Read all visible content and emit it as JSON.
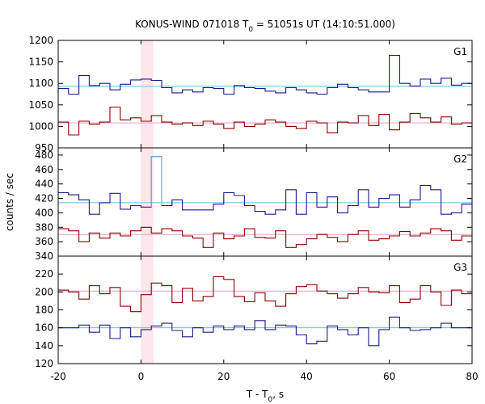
{
  "chart_data": {
    "type": "line",
    "title_prefix": "KONUS-WIND 071018 T",
    "title_sub": "0",
    "title_suffix": " = 51051s UT (14:10:51.000)",
    "xlabel_prefix": "T - T",
    "xlabel_sub": "0",
    "xlabel_suffix": ", s",
    "ylabel": "counts / sec",
    "xlim": [
      -20,
      80
    ],
    "x_ticks": [
      -20,
      0,
      20,
      40,
      60,
      80
    ],
    "highlight_interval": [
      0,
      3
    ],
    "colors": {
      "blue": "#1a1a8c",
      "red": "#8b0000",
      "cyan": "#5bc0eb",
      "pink": "#e79ad0",
      "lightblue": "#7fb4e6",
      "highlight": "#fde7ea"
    },
    "panels": [
      {
        "name": "G1",
        "ylim": [
          950,
          1200
        ],
        "y_ticks": [
          950,
          1000,
          1050,
          1100,
          1150,
          1200
        ],
        "bin_edges": [
          -20,
          -17.5,
          -15,
          -12.5,
          -10,
          -7.5,
          -5,
          -2.5,
          0,
          2.5,
          5,
          7.5,
          10,
          12.5,
          15,
          17.5,
          20,
          22.5,
          25,
          27.5,
          30,
          32.5,
          35,
          37.5,
          40,
          42.5,
          45,
          47.5,
          50,
          52.5,
          55,
          57.5,
          60,
          62.5,
          65,
          67.5,
          70,
          72.5,
          75,
          77.5,
          80
        ],
        "series": [
          {
            "values": [
              1088,
              1075,
              1118,
              1095,
              1100,
              1085,
              1098,
              1108,
              1110,
              1107,
              1090,
              1078,
              1085,
              1080,
              1090,
              1088,
              1075,
              1095,
              1090,
              1088,
              1082,
              1078,
              1090,
              1085,
              1078,
              1075,
              1090,
              1098,
              1090,
              1085,
              1080,
              1080,
              1165,
              1100,
              1094,
              1110,
              1100,
              1112,
              1096,
              1100
            ]
          },
          {
            "values": [
              1010,
              980,
              1012,
              1005,
              1010,
              1045,
              1015,
              1020,
              1012,
              1025,
              1010,
              1005,
              1008,
              1002,
              1012,
              1005,
              995,
              1010,
              1000,
              1005,
              1015,
              1010,
              1000,
              995,
              1012,
              1008,
              985,
              1010,
              1008,
              1025,
              1002,
              1028,
              992,
              1010,
              1030,
              1020,
              1010,
              1022,
              1005,
              1008
            ]
          }
        ],
        "means": [
          {
            "value": 1093
          },
          {
            "value": 1008
          }
        ]
      },
      {
        "name": "G2",
        "ylim": [
          340,
          490
        ],
        "y_ticks": [
          340,
          360,
          380,
          400,
          420,
          440,
          460,
          480
        ],
        "bin_edges": [
          -20,
          -17.5,
          -15,
          -12.5,
          -10,
          -7.5,
          -5,
          -2.5,
          0,
          2.5,
          5,
          7.5,
          10,
          12.5,
          15,
          17.5,
          20,
          22.5,
          25,
          27.5,
          30,
          32.5,
          35,
          37.5,
          40,
          42.5,
          45,
          47.5,
          50,
          52.5,
          55,
          57.5,
          60,
          62.5,
          65,
          67.5,
          70,
          72.5,
          75,
          77.5,
          80
        ],
        "series": [
          {
            "values": [
              428,
              425,
              418,
              398,
              414,
              427,
              405,
              410,
              408,
              478,
              410,
              418,
              404,
              404,
              404,
              412,
              428,
              424,
              410,
              402,
              398,
              404,
              432,
              398,
              428,
              408,
              422,
              400,
              410,
              432,
              408,
              420,
              425,
              408,
              418,
              438,
              432,
              398,
              400,
              412
            ]
          },
          {
            "values": [
              378,
              375,
              360,
              372,
              365,
              372,
              368,
              375,
              380,
              372,
              378,
              375,
              368,
              365,
              352,
              372,
              364,
              368,
              378,
              366,
              365,
              375,
              352,
              356,
              364,
              370,
              366,
              360,
              370,
              375,
              362,
              364,
              368,
              374,
              368,
              372,
              378,
              375,
              362,
              368
            ]
          }
        ],
        "means": [
          {
            "value": 414
          },
          {
            "value": 370
          }
        ]
      },
      {
        "name": "G3",
        "ylim": [
          120,
          240
        ],
        "y_ticks": [
          120,
          140,
          160,
          180,
          200,
          220
        ],
        "bin_edges": [
          -20,
          -17.5,
          -15,
          -12.5,
          -10,
          -7.5,
          -5,
          -2.5,
          0,
          2.5,
          5,
          7.5,
          10,
          12.5,
          15,
          17.5,
          20,
          22.5,
          25,
          27.5,
          30,
          32.5,
          35,
          37.5,
          40,
          42.5,
          45,
          47.5,
          50,
          52.5,
          55,
          57.5,
          60,
          62.5,
          65,
          67.5,
          70,
          72.5,
          75,
          77.5,
          80
        ],
        "series": [
          {
            "values": [
              202,
              200,
              192,
              207,
              198,
              205,
              184,
              178,
              197,
              210,
              207,
              188,
              204,
              190,
              195,
              217,
              214,
              195,
              189,
              199,
              190,
              184,
              198,
              206,
              208,
              201,
              198,
              193,
              198,
              205,
              200,
              199,
              207,
              188,
              192,
              207,
              200,
              185,
              202,
              198
            ]
          },
          {
            "values": [
              160,
              160,
              163,
              155,
              163,
              148,
              160,
              150,
              158,
              162,
              165,
              157,
              150,
              160,
              155,
              162,
              158,
              162,
              158,
              168,
              158,
              163,
              162,
              152,
              142,
              145,
              162,
              158,
              152,
              160,
              140,
              158,
              172,
              160,
              157,
              158,
              160,
              165,
              160,
              160
            ]
          }
        ],
        "means": [
          {
            "value": 201
          },
          {
            "value": 160
          }
        ]
      }
    ]
  }
}
